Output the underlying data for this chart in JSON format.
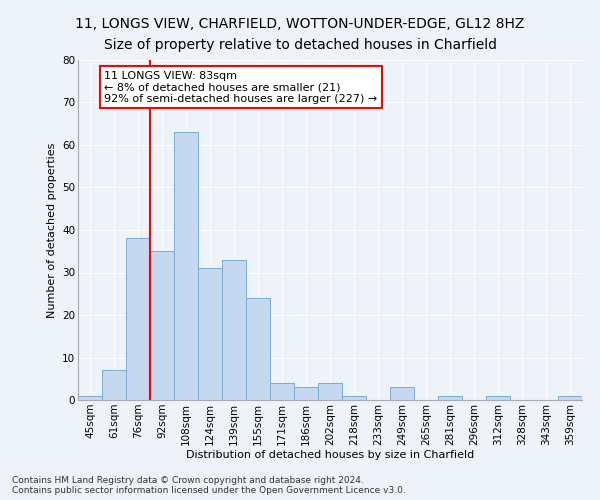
{
  "title_line1": "11, LONGS VIEW, CHARFIELD, WOTTON-UNDER-EDGE, GL12 8HZ",
  "title_line2": "Size of property relative to detached houses in Charfield",
  "xlabel": "Distribution of detached houses by size in Charfield",
  "ylabel": "Number of detached properties",
  "categories": [
    "45sqm",
    "61sqm",
    "76sqm",
    "92sqm",
    "108sqm",
    "124sqm",
    "139sqm",
    "155sqm",
    "171sqm",
    "186sqm",
    "202sqm",
    "218sqm",
    "233sqm",
    "249sqm",
    "265sqm",
    "281sqm",
    "296sqm",
    "312sqm",
    "328sqm",
    "343sqm",
    "359sqm"
  ],
  "values": [
    1,
    7,
    38,
    35,
    63,
    31,
    33,
    24,
    4,
    3,
    4,
    1,
    0,
    3,
    0,
    1,
    0,
    1,
    0,
    0,
    1
  ],
  "bar_color": "#c5d8f0",
  "bar_edgecolor": "#7aadd4",
  "bar_width": 1.0,
  "ylim": [
    0,
    80
  ],
  "yticks": [
    0,
    10,
    20,
    30,
    40,
    50,
    60,
    70,
    80
  ],
  "annotation_line1": "11 LONGS VIEW: 83sqm",
  "annotation_line2": "← 8% of detached houses are smaller (21)",
  "annotation_line3": "92% of semi-detached houses are larger (227) →",
  "vline_x": 2.5,
  "footer_line1": "Contains HM Land Registry data © Crown copyright and database right 2024.",
  "footer_line2": "Contains public sector information licensed under the Open Government Licence v3.0.",
  "bg_color": "#eef2f9",
  "plot_bg_color": "#eef2f9",
  "grid_color": "#ffffff",
  "title_fontsize": 10,
  "subtitle_fontsize": 10,
  "axis_label_fontsize": 8,
  "tick_fontsize": 7.5,
  "annotation_fontsize": 8,
  "footer_fontsize": 6.5
}
